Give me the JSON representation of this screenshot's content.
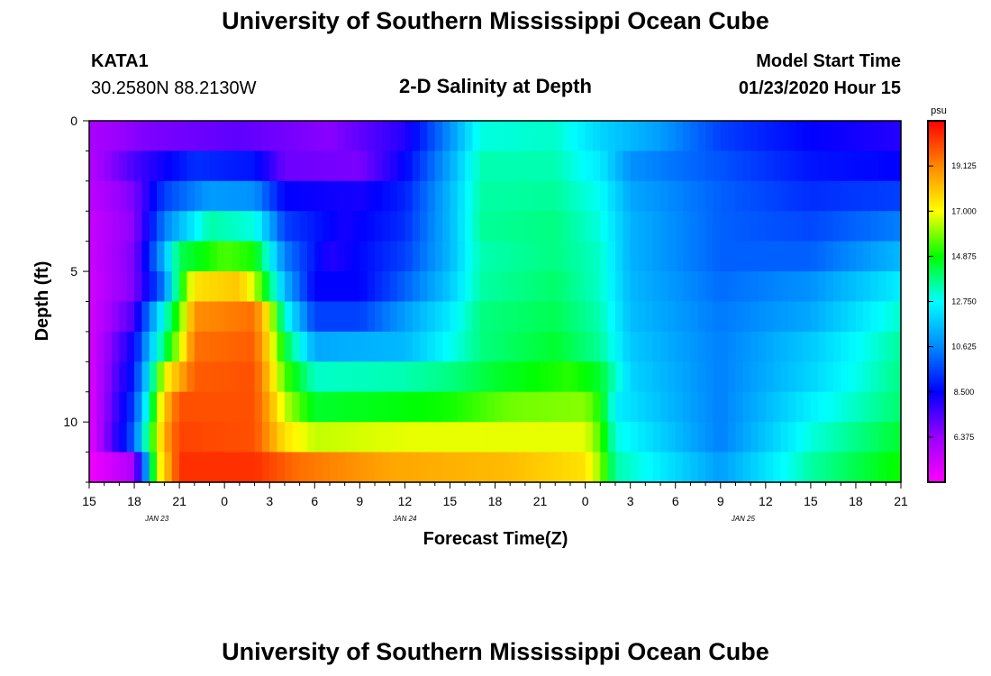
{
  "page": {
    "title_top": "University of Southern Mississippi Ocean Cube",
    "title_bottom": "University of Southern Mississippi Ocean Cube"
  },
  "header": {
    "station": "KATA1",
    "coords": "30.2580N 88.2130W",
    "plot_title": "2-D Salinity at Depth",
    "start_label": "Model Start Time",
    "start_value": "01/23/2020 Hour 15"
  },
  "chart_data": {
    "type": "heatmap",
    "title": "2-D Salinity at Depth",
    "xlabel": "Forecast Time(Z)",
    "ylabel": "Depth (ft)",
    "x_range_hours": [
      0,
      54
    ],
    "y_range": [
      0,
      12
    ],
    "x_ticks": [
      "15",
      "18",
      "21",
      "0",
      "3",
      "6",
      "9",
      "12",
      "15",
      "18",
      "21",
      "0",
      "3",
      "6",
      "9",
      "12",
      "15",
      "18",
      "21"
    ],
    "y_ticks": [
      "0",
      "5",
      "10"
    ],
    "date_labels": [
      {
        "text": "JAN  23",
        "hour": 4.5
      },
      {
        "text": "JAN  24",
        "hour": 21
      },
      {
        "text": "JAN  25",
        "hour": 43.5
      }
    ],
    "colorbar": {
      "unit": "psu",
      "min": 4.25,
      "max": 21.25,
      "ticks": [
        "19.125",
        "17.000",
        "14.875",
        "12.750",
        "10.625",
        "8.500",
        "6.375"
      ],
      "tick_values": [
        19.125,
        17.0,
        14.875,
        12.75,
        10.625,
        8.5,
        6.375
      ]
    },
    "depth_levels_ft": [
      0.5,
      1.5,
      2.5,
      3.5,
      4.5,
      5.5,
      6.5,
      7.5,
      8.5,
      9.5,
      10.5,
      11.5
    ],
    "salinity_rows": [
      [
        {
          "h": 0,
          "v": 6
        },
        {
          "h": 4,
          "v": 6.8
        },
        {
          "h": 10,
          "v": 7.2
        },
        {
          "h": 16,
          "v": 6.6
        },
        {
          "h": 21,
          "v": 8
        },
        {
          "h": 24,
          "v": 10.8
        },
        {
          "h": 26,
          "v": 13
        },
        {
          "h": 31,
          "v": 13.2
        },
        {
          "h": 34,
          "v": 12
        },
        {
          "h": 38,
          "v": 11
        },
        {
          "h": 42,
          "v": 9.5
        },
        {
          "h": 48,
          "v": 8.5
        },
        {
          "h": 54,
          "v": 8
        }
      ],
      [
        {
          "h": 0,
          "v": 5.8
        },
        {
          "h": 3,
          "v": 7.5
        },
        {
          "h": 7,
          "v": 9.2
        },
        {
          "h": 11,
          "v": 8.8
        },
        {
          "h": 13,
          "v": 7
        },
        {
          "h": 18,
          "v": 6.8
        },
        {
          "h": 21,
          "v": 8.5
        },
        {
          "h": 24,
          "v": 11.2
        },
        {
          "h": 26,
          "v": 13.4
        },
        {
          "h": 31,
          "v": 13.4
        },
        {
          "h": 34,
          "v": 12.4
        },
        {
          "h": 36,
          "v": 10.8
        },
        {
          "h": 42,
          "v": 9.8
        },
        {
          "h": 48,
          "v": 8.8
        },
        {
          "h": 54,
          "v": 8.5
        }
      ],
      [
        {
          "h": 0,
          "v": 5.6
        },
        {
          "h": 3,
          "v": 6.8
        },
        {
          "h": 5,
          "v": 9.5
        },
        {
          "h": 8,
          "v": 11
        },
        {
          "h": 11,
          "v": 10.8
        },
        {
          "h": 13,
          "v": 8.5
        },
        {
          "h": 18,
          "v": 8.2
        },
        {
          "h": 21,
          "v": 9
        },
        {
          "h": 24,
          "v": 11.5
        },
        {
          "h": 26,
          "v": 13.5
        },
        {
          "h": 31,
          "v": 13.6
        },
        {
          "h": 34,
          "v": 12.8
        },
        {
          "h": 36,
          "v": 11.2
        },
        {
          "h": 42,
          "v": 10
        },
        {
          "h": 48,
          "v": 9.2
        },
        {
          "h": 54,
          "v": 9.5
        }
      ],
      [
        {
          "h": 0,
          "v": 5.4
        },
        {
          "h": 3,
          "v": 6.6
        },
        {
          "h": 5,
          "v": 10.5
        },
        {
          "h": 8,
          "v": 13.5
        },
        {
          "h": 11,
          "v": 13
        },
        {
          "h": 13,
          "v": 9.5
        },
        {
          "h": 17,
          "v": 8.2
        },
        {
          "h": 21,
          "v": 9.2
        },
        {
          "h": 24,
          "v": 11.5
        },
        {
          "h": 26,
          "v": 13.6
        },
        {
          "h": 31,
          "v": 13.8
        },
        {
          "h": 34,
          "v": 13
        },
        {
          "h": 36,
          "v": 11.4
        },
        {
          "h": 42,
          "v": 10
        },
        {
          "h": 48,
          "v": 9.6
        },
        {
          "h": 54,
          "v": 10.5
        }
      ],
      [
        {
          "h": 0,
          "v": 5.3
        },
        {
          "h": 3,
          "v": 6.8
        },
        {
          "h": 5,
          "v": 11.5
        },
        {
          "h": 6,
          "v": 14.2
        },
        {
          "h": 9,
          "v": 15.5
        },
        {
          "h": 11,
          "v": 15
        },
        {
          "h": 13,
          "v": 10.5
        },
        {
          "h": 16,
          "v": 8
        },
        {
          "h": 21,
          "v": 9.5
        },
        {
          "h": 24,
          "v": 11.5
        },
        {
          "h": 26,
          "v": 13.4
        },
        {
          "h": 31,
          "v": 13.8
        },
        {
          "h": 34,
          "v": 13.2
        },
        {
          "h": 36,
          "v": 11.4
        },
        {
          "h": 42,
          "v": 10
        },
        {
          "h": 48,
          "v": 10
        },
        {
          "h": 54,
          "v": 11.5
        }
      ],
      [
        {
          "h": 0,
          "v": 5.2
        },
        {
          "h": 3,
          "v": 6.8
        },
        {
          "h": 5,
          "v": 10.5
        },
        {
          "h": 6,
          "v": 14.5
        },
        {
          "h": 7,
          "v": 17.5
        },
        {
          "h": 10,
          "v": 18
        },
        {
          "h": 11,
          "v": 16.5
        },
        {
          "h": 13,
          "v": 11.5
        },
        {
          "h": 15,
          "v": 8.5
        },
        {
          "h": 18,
          "v": 8.5
        },
        {
          "h": 21,
          "v": 10
        },
        {
          "h": 24,
          "v": 11.8
        },
        {
          "h": 26,
          "v": 13.5
        },
        {
          "h": 31,
          "v": 14
        },
        {
          "h": 34,
          "v": 13.2
        },
        {
          "h": 36,
          "v": 11.5
        },
        {
          "h": 42,
          "v": 10.2
        },
        {
          "h": 48,
          "v": 10.8
        },
        {
          "h": 54,
          "v": 12.5
        }
      ],
      [
        {
          "h": 0,
          "v": 5.1
        },
        {
          "h": 3,
          "v": 7.5
        },
        {
          "h": 4,
          "v": 10.5
        },
        {
          "h": 6,
          "v": 15.5
        },
        {
          "h": 7,
          "v": 19
        },
        {
          "h": 11,
          "v": 19.5
        },
        {
          "h": 12,
          "v": 17
        },
        {
          "h": 13,
          "v": 13
        },
        {
          "h": 15,
          "v": 9.5
        },
        {
          "h": 18,
          "v": 9.5
        },
        {
          "h": 21,
          "v": 11
        },
        {
          "h": 24,
          "v": 12.4
        },
        {
          "h": 26,
          "v": 13.8
        },
        {
          "h": 31,
          "v": 14.2
        },
        {
          "h": 34,
          "v": 13.4
        },
        {
          "h": 36,
          "v": 11.6
        },
        {
          "h": 42,
          "v": 10.4
        },
        {
          "h": 48,
          "v": 11.2
        },
        {
          "h": 54,
          "v": 13.2
        }
      ],
      [
        {
          "h": 0,
          "v": 5
        },
        {
          "h": 3,
          "v": 8.5
        },
        {
          "h": 4,
          "v": 11.5
        },
        {
          "h": 6,
          "v": 16.5
        },
        {
          "h": 7,
          "v": 19.5
        },
        {
          "h": 11,
          "v": 19.8
        },
        {
          "h": 12,
          "v": 17.5
        },
        {
          "h": 13,
          "v": 14.5
        },
        {
          "h": 15,
          "v": 11.2
        },
        {
          "h": 21,
          "v": 11.5
        },
        {
          "h": 24,
          "v": 12.8
        },
        {
          "h": 26,
          "v": 13.8
        },
        {
          "h": 31,
          "v": 14.5
        },
        {
          "h": 34,
          "v": 13.6
        },
        {
          "h": 36,
          "v": 11.8
        },
        {
          "h": 42,
          "v": 10.5
        },
        {
          "h": 48,
          "v": 11.8
        },
        {
          "h": 54,
          "v": 13.6
        }
      ],
      [
        {
          "h": 0,
          "v": 4.9
        },
        {
          "h": 3,
          "v": 9
        },
        {
          "h": 4,
          "v": 12.5
        },
        {
          "h": 5,
          "v": 17
        },
        {
          "h": 7,
          "v": 19.8
        },
        {
          "h": 11,
          "v": 20
        },
        {
          "h": 12,
          "v": 18
        },
        {
          "h": 13,
          "v": 15.5
        },
        {
          "h": 15,
          "v": 13.2
        },
        {
          "h": 21,
          "v": 13.4
        },
        {
          "h": 24,
          "v": 13.8
        },
        {
          "h": 27,
          "v": 14.5
        },
        {
          "h": 32,
          "v": 15.2
        },
        {
          "h": 34,
          "v": 14.5
        },
        {
          "h": 36,
          "v": 12
        },
        {
          "h": 42,
          "v": 10.5
        },
        {
          "h": 48,
          "v": 12
        },
        {
          "h": 54,
          "v": 13.8
        }
      ],
      [
        {
          "h": 0,
          "v": 4.8
        },
        {
          "h": 3,
          "v": 9.5
        },
        {
          "h": 4,
          "v": 13.5
        },
        {
          "h": 5,
          "v": 18
        },
        {
          "h": 6,
          "v": 20
        },
        {
          "h": 11,
          "v": 20
        },
        {
          "h": 12,
          "v": 18.5
        },
        {
          "h": 13,
          "v": 16.5
        },
        {
          "h": 15,
          "v": 14.5
        },
        {
          "h": 21,
          "v": 14.8
        },
        {
          "h": 24,
          "v": 15
        },
        {
          "h": 28,
          "v": 15.8
        },
        {
          "h": 33,
          "v": 16
        },
        {
          "h": 34,
          "v": 15
        },
        {
          "h": 35,
          "v": 12.5
        },
        {
          "h": 42,
          "v": 10.5
        },
        {
          "h": 48,
          "v": 12.5
        },
        {
          "h": 54,
          "v": 14
        }
      ],
      [
        {
          "h": 0,
          "v": 4.7
        },
        {
          "h": 3,
          "v": 10
        },
        {
          "h": 4,
          "v": 14.5
        },
        {
          "h": 5,
          "v": 18.5
        },
        {
          "h": 6,
          "v": 20.2
        },
        {
          "h": 11,
          "v": 20
        },
        {
          "h": 12,
          "v": 18.8
        },
        {
          "h": 13,
          "v": 17.5
        },
        {
          "h": 15,
          "v": 16.5
        },
        {
          "h": 21,
          "v": 16.8
        },
        {
          "h": 28,
          "v": 16.8
        },
        {
          "h": 33,
          "v": 16.8
        },
        {
          "h": 34,
          "v": 15.5
        },
        {
          "h": 35,
          "v": 13
        },
        {
          "h": 42,
          "v": 10.5
        },
        {
          "h": 48,
          "v": 13
        },
        {
          "h": 54,
          "v": 14.5
        }
      ],
      [
        {
          "h": 0,
          "v": 4.5
        },
        {
          "h": 3,
          "v": 6
        },
        {
          "h": 3.8,
          "v": 11
        },
        {
          "h": 4.5,
          "v": 16.5
        },
        {
          "h": 6,
          "v": 20.5
        },
        {
          "h": 11,
          "v": 20.5
        },
        {
          "h": 14,
          "v": 19.5
        },
        {
          "h": 20,
          "v": 18.6
        },
        {
          "h": 28,
          "v": 18.2
        },
        {
          "h": 33,
          "v": 17.5
        },
        {
          "h": 34,
          "v": 16
        },
        {
          "h": 35,
          "v": 13.5
        },
        {
          "h": 42,
          "v": 11
        },
        {
          "h": 48,
          "v": 13.5
        },
        {
          "h": 54,
          "v": 15
        }
      ]
    ]
  }
}
